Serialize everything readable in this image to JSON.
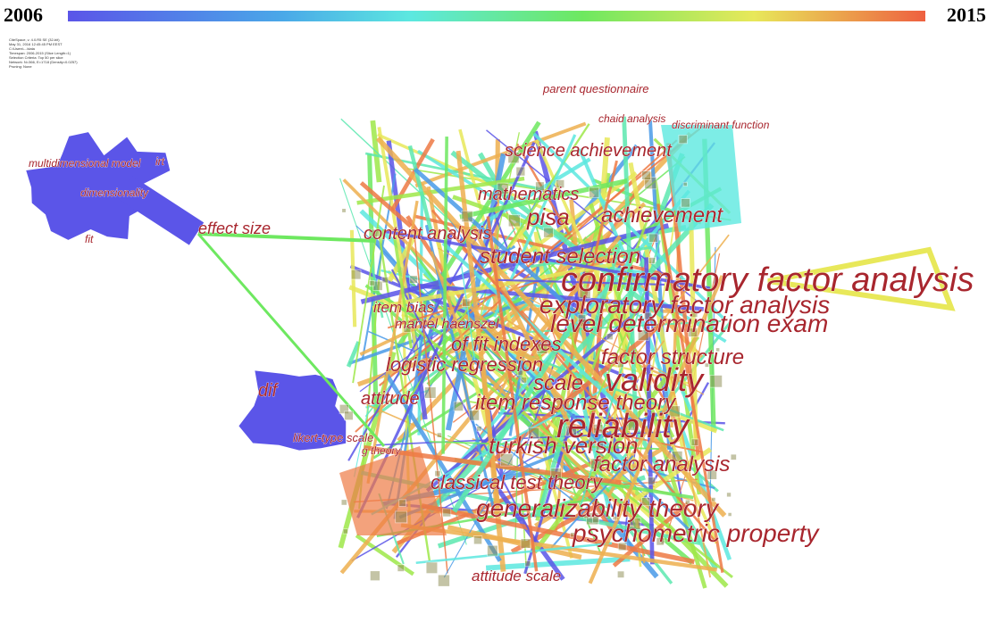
{
  "timeline": {
    "start": "2006",
    "end": "2015"
  },
  "info": [
    "CiteSpace, v. 4.0.R5 SE (32-bit)",
    "May 31, 2016 12:45:45 PM EEST",
    "C:\\Users\\...\\data",
    "Timespan: 2006-2015 (Slice Length=1)",
    "Selection Criteria: Top 50 per slice",
    "Network: N=366, E=1718 (Density=0.0257)",
    "Pruning: None"
  ],
  "nodes": [
    {
      "label": "parent questionnaire"
    },
    {
      "label": "chaid analysis"
    },
    {
      "label": "discriminant function"
    },
    {
      "label": "science achievement"
    },
    {
      "label": "mathematics"
    },
    {
      "label": "pisa"
    },
    {
      "label": "achievement"
    },
    {
      "label": "multidimensional model"
    },
    {
      "label": "irt"
    },
    {
      "label": "dimensionality"
    },
    {
      "label": "fit"
    },
    {
      "label": "effect size"
    },
    {
      "label": "content analysis"
    },
    {
      "label": "student selection"
    },
    {
      "label": "confirmatory factor analysis"
    },
    {
      "label": "exploratory factor analysis"
    },
    {
      "label": "item bias"
    },
    {
      "label": "mantel haenszel"
    },
    {
      "label": "level determination exam"
    },
    {
      "label": "of fit indexes"
    },
    {
      "label": "factor structure"
    },
    {
      "label": "logistic regression"
    },
    {
      "label": "scale"
    },
    {
      "label": "validity"
    },
    {
      "label": "dif"
    },
    {
      "label": "attitude"
    },
    {
      "label": "item response theory"
    },
    {
      "label": "reliability"
    },
    {
      "label": "likert-type scale"
    },
    {
      "label": "g theory"
    },
    {
      "label": "turkish version"
    },
    {
      "label": "factor analysis"
    },
    {
      "label": "classical test theory"
    },
    {
      "label": "generalizability theory"
    },
    {
      "label": "psychometric property"
    },
    {
      "label": "attitude scale"
    }
  ]
}
